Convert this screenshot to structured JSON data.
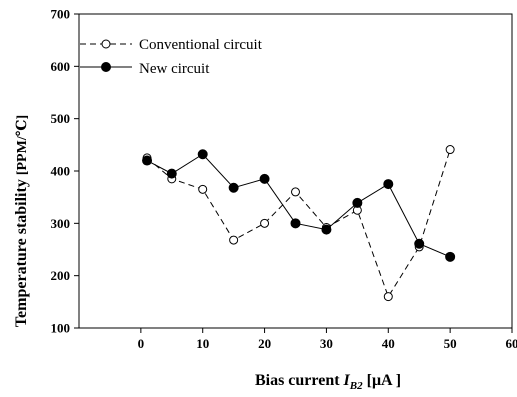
{
  "chart_data": {
    "type": "line",
    "title": "",
    "xlabel_main": "Bias current ",
    "xlabel_var": "I",
    "xlabel_sub": "B2",
    "xlabel_unit": " [μA ]",
    "ylabel_main": "Temperature stability ",
    "ylabel_unit": "[PPM/℃]",
    "xlim": [
      -10,
      60
    ],
    "ylim": [
      100,
      700
    ],
    "xticks": [
      0,
      10,
      20,
      30,
      40,
      50,
      60
    ],
    "yticks": [
      100,
      200,
      300,
      400,
      500,
      600,
      700
    ],
    "grid": false,
    "legend_position": "top-left",
    "series": [
      {
        "name": "Conventional circuit",
        "marker": "open-circle",
        "line_style": "dashed",
        "color": "#000000",
        "x": [
          1,
          5,
          10,
          15,
          20,
          25,
          30,
          35,
          40,
          45,
          50
        ],
        "y": [
          425,
          385,
          365,
          268,
          300,
          360,
          292,
          325,
          160,
          255,
          441
        ]
      },
      {
        "name": "New circuit",
        "marker": "filled-circle",
        "line_style": "solid",
        "color": "#000000",
        "x": [
          1,
          5,
          10,
          15,
          20,
          25,
          30,
          35,
          40,
          45,
          50
        ],
        "y": [
          420,
          395,
          432,
          368,
          385,
          300,
          288,
          339,
          375,
          261,
          236
        ]
      }
    ]
  }
}
